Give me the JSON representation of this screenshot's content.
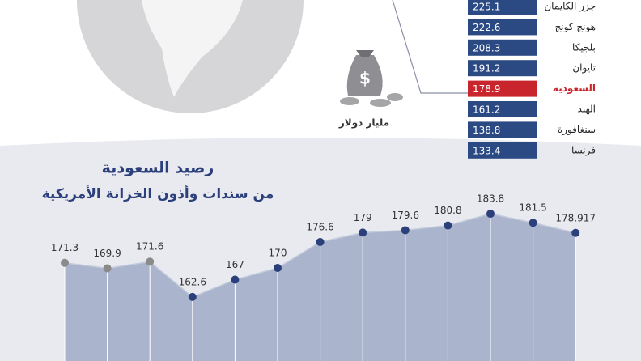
{
  "chart_data": [
    {
      "type": "ranking",
      "unit_label": "مليار دولار",
      "categories": [
        "جزر الكايمان",
        "هونج كونج",
        "بلجيكا",
        "تايوان",
        "السعودية",
        "الهند",
        "سنغافورة",
        "فرنسا"
      ],
      "values": [
        225.1,
        222.6,
        208.3,
        191.2,
        178.9,
        161.2,
        138.8,
        133.4
      ],
      "colors": [
        "#2b4a84",
        "#2b4a84",
        "#2b4a84",
        "#2b4a84",
        "#c8262c",
        "#2b4a84",
        "#2b4a84",
        "#2b4a84"
      ]
    },
    {
      "type": "area",
      "title": "رصيد السعودية",
      "subtitle": "من سندات وأذون الخزانة الأمريكية",
      "ylim": [
        150,
        190
      ],
      "series": [
        {
          "color": "#2b3f7a",
          "fill": "#aab5cd",
          "marker_colors": [
            "#8a8a8a",
            "#8a8a8a",
            "#8a8a8a",
            "#2b3f7a",
            "#2b3f7a",
            "#2b3f7a",
            "#2b3f7a",
            "#2b3f7a",
            "#2b3f7a",
            "#2b3f7a",
            "#2b3f7a",
            "#2b3f7a",
            "#2b3f7a"
          ],
          "values": [
            171.3,
            169.9,
            171.6,
            162.6,
            167,
            170,
            176.6,
            179,
            179.6,
            180.8,
            183.8,
            181.5,
            178.917
          ]
        }
      ]
    }
  ]
}
